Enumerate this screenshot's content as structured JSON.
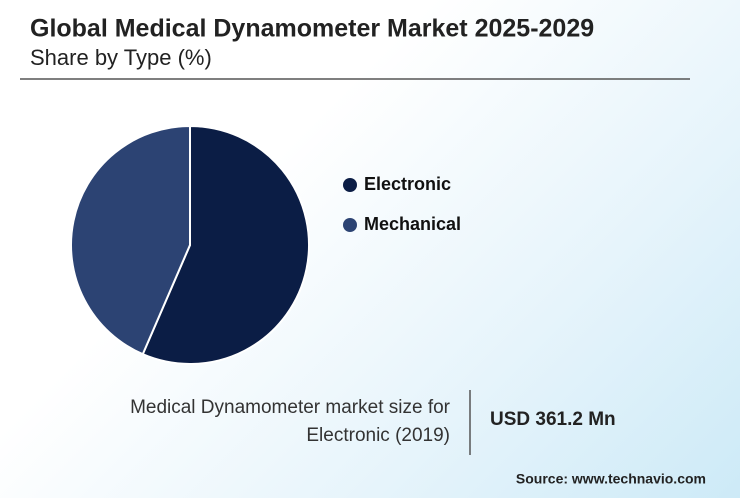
{
  "chart_data": {
    "type": "pie",
    "title": "Global Medical Dynamometer Market 2025-2029",
    "subtitle": "Share by Type (%)",
    "categories": [
      "Electronic",
      "Mechanical"
    ],
    "values": [
      56.5,
      43.5
    ],
    "colors": [
      "#0b1d45",
      "#2c4373"
    ]
  },
  "footer": {
    "description": [
      "Medical Dynamometer market size for",
      "Electronic (2019)"
    ],
    "value": "USD 361.2 Mn",
    "source": "Source: www.technavio.com"
  }
}
